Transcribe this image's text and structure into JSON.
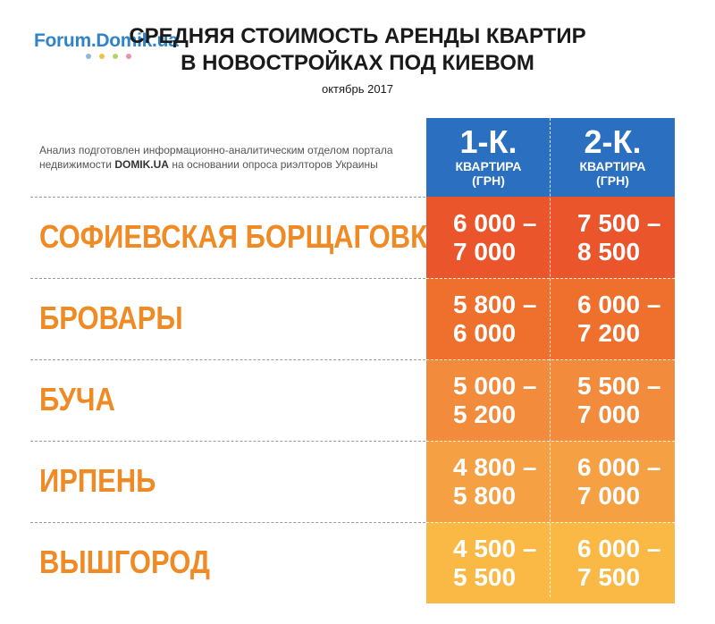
{
  "logo": {
    "text": "Forum.Domik.ua",
    "dot_colors": [
      "#8fb7e0",
      "#f3c04a",
      "#b6d567",
      "#ef8fb0"
    ]
  },
  "title_line1": "СРЕДНЯЯ СТОИМОСТЬ АРЕНДЫ КВАРТИР",
  "title_line2": "В НОВОСТРОЙКАХ ПОД КИЕВОМ",
  "subtitle": "октябрь 2017",
  "note": {
    "line1": "Анализ подготовлен информационно-аналитическим отделом портала",
    "line2_prefix": "недвижимости ",
    "line2_brand": "DOMIK.UA",
    "line2_suffix": " на основании опроса риэлторов Украины"
  },
  "colors": {
    "header": "#2a6fc0",
    "city_text": "#f08a24",
    "rows": [
      "#ea552b",
      "#ef6f2d",
      "#f28b3c",
      "#f5a043",
      "#f9b944"
    ]
  },
  "chart_data": {
    "type": "table",
    "title": "СРЕДНЯЯ СТОИМОСТЬ АРЕНДЫ КВАРТИР В НОВОСТРОЙКАХ ПОД КИЕВОМ",
    "subtitle": "октябрь 2017",
    "columns": [
      {
        "big": "1-К.",
        "small1": "КВАРТИРА",
        "small2": "(ГРН)"
      },
      {
        "big": "2-К.",
        "small1": "КВАРТИРА",
        "small2": "(ГРН)"
      }
    ],
    "rows": [
      {
        "city": "СОФИЕВСКАЯ БОРЩАГОВКА",
        "values": [
          [
            "6 000 –",
            "7 000"
          ],
          [
            "7 500 –",
            "8 500"
          ]
        ]
      },
      {
        "city": "БРОВАРЫ",
        "values": [
          [
            "5 800 –",
            "6 000"
          ],
          [
            "6 000 –",
            "7 200"
          ]
        ]
      },
      {
        "city": "БУЧА",
        "values": [
          [
            "5 000 –",
            "5 200"
          ],
          [
            "5 500 –",
            "7 000"
          ]
        ]
      },
      {
        "city": "ИРПЕНЬ",
        "values": [
          [
            "4 800 –",
            "5 800"
          ],
          [
            "6 000 –",
            "7 000"
          ]
        ]
      },
      {
        "city": "ВЫШГОРОД",
        "values": [
          [
            "4 500 –",
            "5 500"
          ],
          [
            "6 000 –",
            "7 500"
          ]
        ]
      }
    ]
  }
}
